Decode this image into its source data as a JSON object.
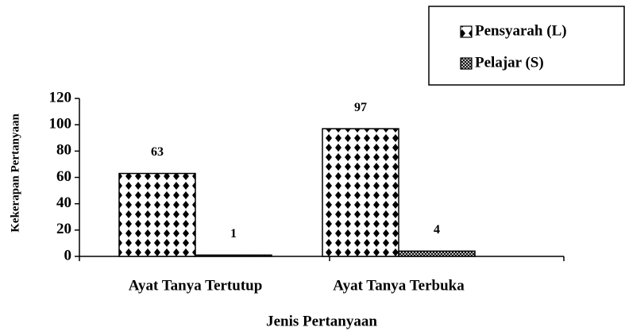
{
  "chart_data": {
    "type": "bar",
    "x_label": "Jenis Pertanyaan",
    "y_label": "Kekerapan Pertanyaan",
    "categories": [
      "Ayat Tanya Tertutup",
      "Ayat Tanya Terbuka"
    ],
    "series": [
      {
        "name": "Pensyarah (L)",
        "color": "#000000",
        "values": [
          63,
          97
        ]
      },
      {
        "name": "Pelajar (S)",
        "color": "#555555",
        "values": [
          1,
          4
        ]
      }
    ],
    "ylim": [
      0,
      120
    ],
    "yticks": [
      0,
      20,
      40,
      60,
      80,
      100,
      120
    ],
    "legend": "top-right"
  }
}
